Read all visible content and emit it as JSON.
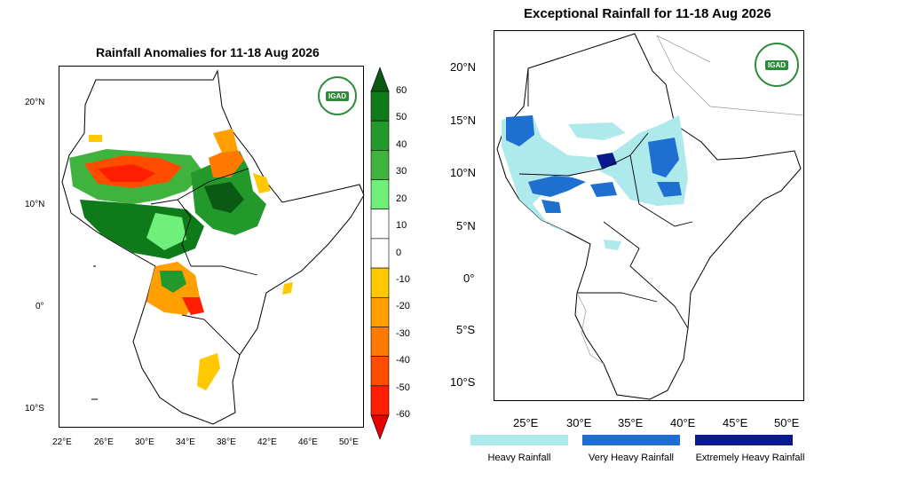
{
  "left_panel": {
    "title": "Rainfall Anomalies for 11-18 Aug 2026",
    "logo_text": "IGAD",
    "lat_ticks": [
      "20°N",
      "10°N",
      "0°",
      "10°S"
    ],
    "lon_ticks": [
      "22°E",
      "26°E",
      "30°E",
      "34°E",
      "38°E",
      "42°E",
      "46°E",
      "50°E"
    ],
    "colorbar": {
      "labels": [
        "60",
        "50",
        "40",
        "30",
        "20",
        "10",
        "0",
        "-10",
        "-20",
        "-30",
        "-40",
        "-50",
        "-60"
      ],
      "colors": [
        "#0b5a14",
        "#0f7a1a",
        "#22992a",
        "#3fb33e",
        "#6ff07a",
        "#ffffff",
        "#ffffff",
        "#ffc800",
        "#ffa000",
        "#ff7a00",
        "#ff4d00",
        "#ff1e00",
        "#e60000"
      ]
    }
  },
  "right_panel": {
    "title": "Exceptional Rainfall for 11-18 Aug 2026",
    "logo_text": "IGAD",
    "lat_ticks": [
      "20°N",
      "15°N",
      "10°N",
      "5°N",
      "0°",
      "5°S",
      "10°S"
    ],
    "lon_ticks": [
      "25°E",
      "30°E",
      "35°E",
      "40°E",
      "45°E",
      "50°E"
    ],
    "legend": [
      {
        "label": "Heavy Rainfall",
        "color": "#aee9ec"
      },
      {
        "label": "Very Heavy Rainfall",
        "color": "#1f6fd1"
      },
      {
        "label": "Extremely Heavy Rainfall",
        "color": "#0a1a8c"
      }
    ]
  }
}
